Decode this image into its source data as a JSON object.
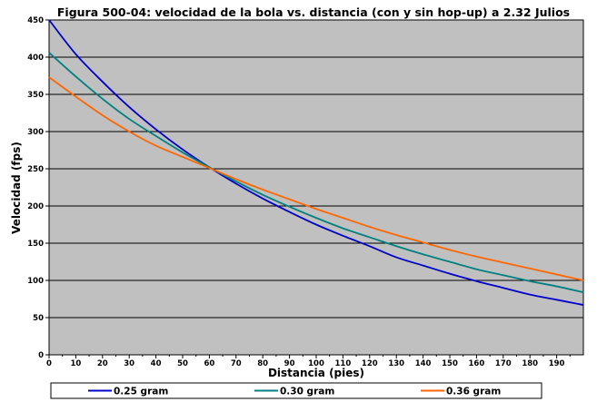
{
  "chart_data": {
    "type": "line",
    "title": "Figura 500-04: velocidad de la bola vs. distancia (con y sin hop-up) a 2.32 Julios",
    "xlabel": "Distancia (pies)",
    "ylabel": "Velocidad (fps)",
    "xlim": [
      0,
      200
    ],
    "ylim": [
      0,
      450
    ],
    "x_ticks": [
      0,
      10,
      20,
      30,
      40,
      50,
      60,
      70,
      80,
      90,
      100,
      110,
      120,
      130,
      140,
      150,
      160,
      170,
      180,
      190
    ],
    "y_ticks": [
      0,
      50,
      100,
      150,
      200,
      250,
      300,
      350,
      400,
      450
    ],
    "grid": "horizontal",
    "plot_background": "#c0c0c0",
    "legend_position": "bottom",
    "x": [
      0,
      10,
      20,
      30,
      40,
      50,
      60,
      70,
      80,
      90,
      100,
      110,
      120,
      130,
      140,
      150,
      160,
      170,
      180,
      190,
      200
    ],
    "series": [
      {
        "name": "0.25 gram",
        "color": "#0000cc",
        "values": [
          450,
          404,
          367,
          333,
          303,
          276,
          252,
          230,
          210,
          192,
          175,
          160,
          146,
          131,
          120,
          109,
          99,
          90,
          81,
          74,
          67
        ]
      },
      {
        "name": "0.30 gram",
        "color": "#008080",
        "values": [
          406,
          374,
          344,
          317,
          294,
          272,
          252,
          233,
          215,
          199,
          184,
          170,
          158,
          146,
          135,
          125,
          115,
          107,
          99,
          92,
          84
        ]
      },
      {
        "name": "0.36 gram",
        "color": "#ff6600",
        "values": [
          373,
          347,
          322,
          300,
          281,
          266,
          251,
          236,
          222,
          209,
          196,
          184,
          172,
          161,
          151,
          141,
          132,
          124,
          116,
          108,
          100
        ]
      }
    ]
  }
}
